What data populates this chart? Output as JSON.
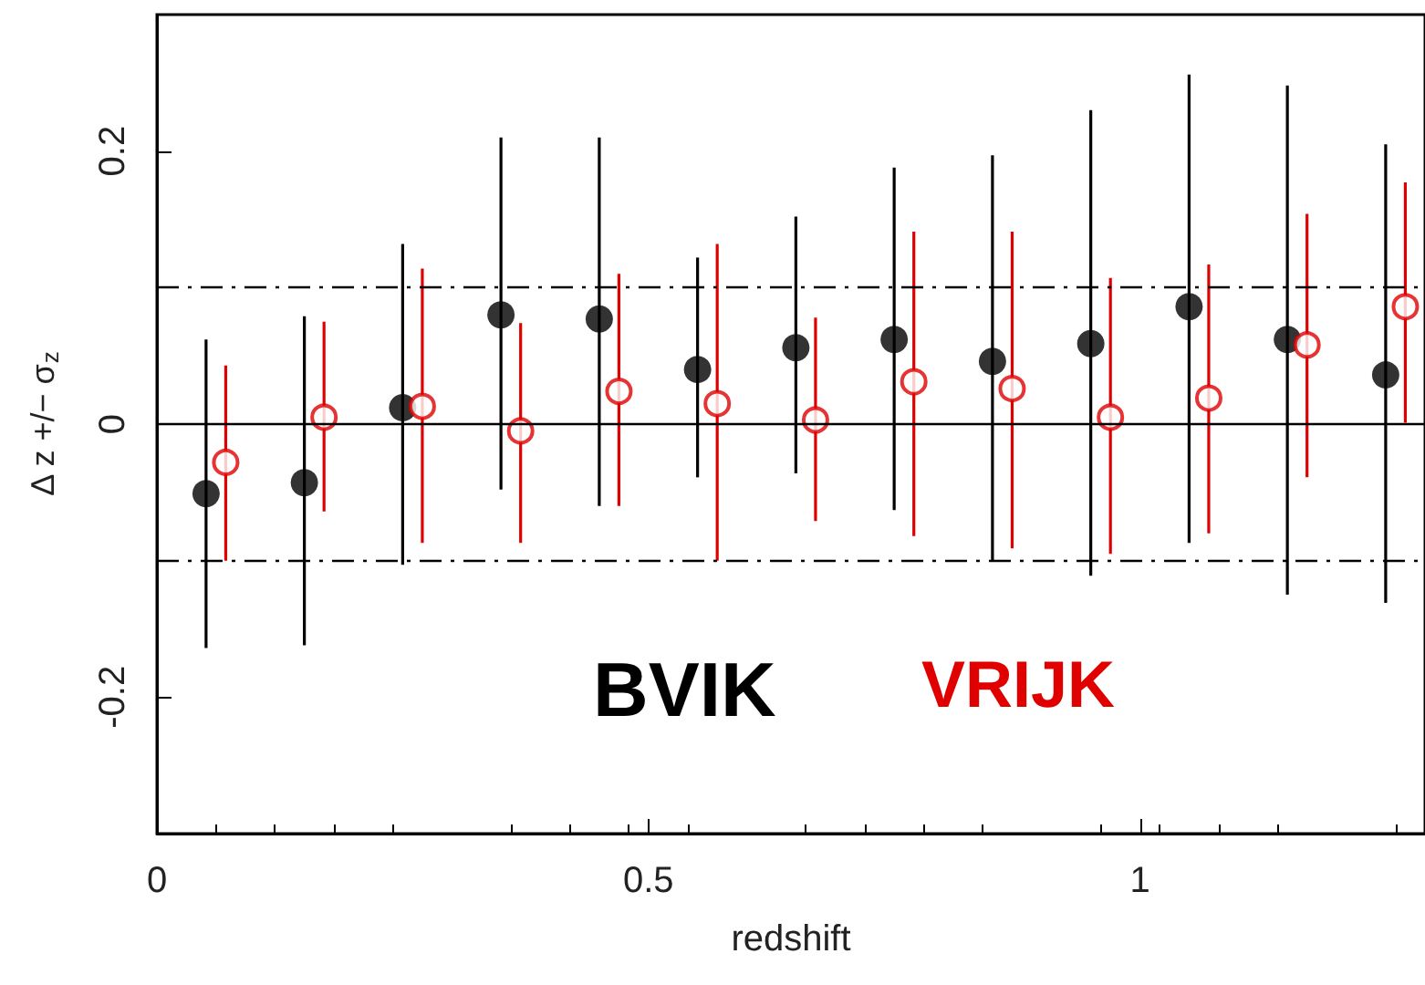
{
  "chart_data": {
    "type": "scatter",
    "xlabel": "redshift",
    "ylabel": "Δ z +/− σ$_{z}$",
    "xlim": [
      0,
      1.29
    ],
    "ylim": [
      -0.3,
      0.3
    ],
    "xticks": [
      0,
      0.5,
      1
    ],
    "yticks": [
      -0.2,
      0,
      0.2
    ],
    "grid": false,
    "legend": false,
    "marker": "circle",
    "ref_lines": [
      {
        "axis": "y",
        "value": 0,
        "line_style": "solid",
        "color": "#000000"
      },
      {
        "axis": "y",
        "value": 0.1,
        "line_style": "dashdot",
        "color": "#000000"
      },
      {
        "axis": "y",
        "value": -0.1,
        "line_style": "dashdot",
        "color": "#000000"
      }
    ],
    "series": [
      {
        "name": "BVIK",
        "color": "#000000",
        "x": [
          0.05,
          0.15,
          0.25,
          0.35,
          0.45,
          0.55,
          0.65,
          0.75,
          0.85,
          0.95,
          1.05,
          1.15,
          1.25
        ],
        "values": [
          -0.051,
          -0.043,
          0.012,
          0.08,
          0.077,
          0.04,
          0.056,
          0.062,
          0.046,
          0.059,
          0.086,
          0.062,
          0.036
        ],
        "errors": [
          [
            -0.164,
            0.062
          ],
          [
            -0.162,
            0.079
          ],
          [
            -0.103,
            0.132
          ],
          [
            -0.048,
            0.21
          ],
          [
            -0.06,
            0.21
          ],
          [
            -0.039,
            0.122
          ],
          [
            -0.036,
            0.152
          ],
          [
            -0.063,
            0.188
          ],
          [
            -0.1,
            0.197
          ],
          [
            -0.111,
            0.23
          ],
          [
            -0.087,
            0.256
          ],
          [
            -0.125,
            0.248
          ],
          [
            -0.131,
            0.205
          ]
        ]
      },
      {
        "name": "VRIJK",
        "color": "#e00000",
        "x": [
          0.07,
          0.17,
          0.27,
          0.37,
          0.47,
          0.57,
          0.67,
          0.77,
          0.87,
          0.97,
          1.07,
          1.17,
          1.27
        ],
        "values": [
          -0.028,
          0.005,
          0.013,
          -0.005,
          0.024,
          0.015,
          0.003,
          0.031,
          0.026,
          0.005,
          0.019,
          0.058,
          0.086
        ],
        "errors": [
          [
            -0.1,
            0.043
          ],
          [
            -0.064,
            0.075
          ],
          [
            -0.087,
            0.114
          ],
          [
            -0.087,
            0.074
          ],
          [
            -0.06,
            0.11
          ],
          [
            -0.1,
            0.132
          ],
          [
            -0.071,
            0.078
          ],
          [
            -0.082,
            0.141
          ],
          [
            -0.091,
            0.141
          ],
          [
            -0.095,
            0.107
          ],
          [
            -0.08,
            0.117
          ],
          [
            -0.039,
            0.154
          ],
          [
            0.001,
            0.177
          ]
        ]
      }
    ]
  }
}
